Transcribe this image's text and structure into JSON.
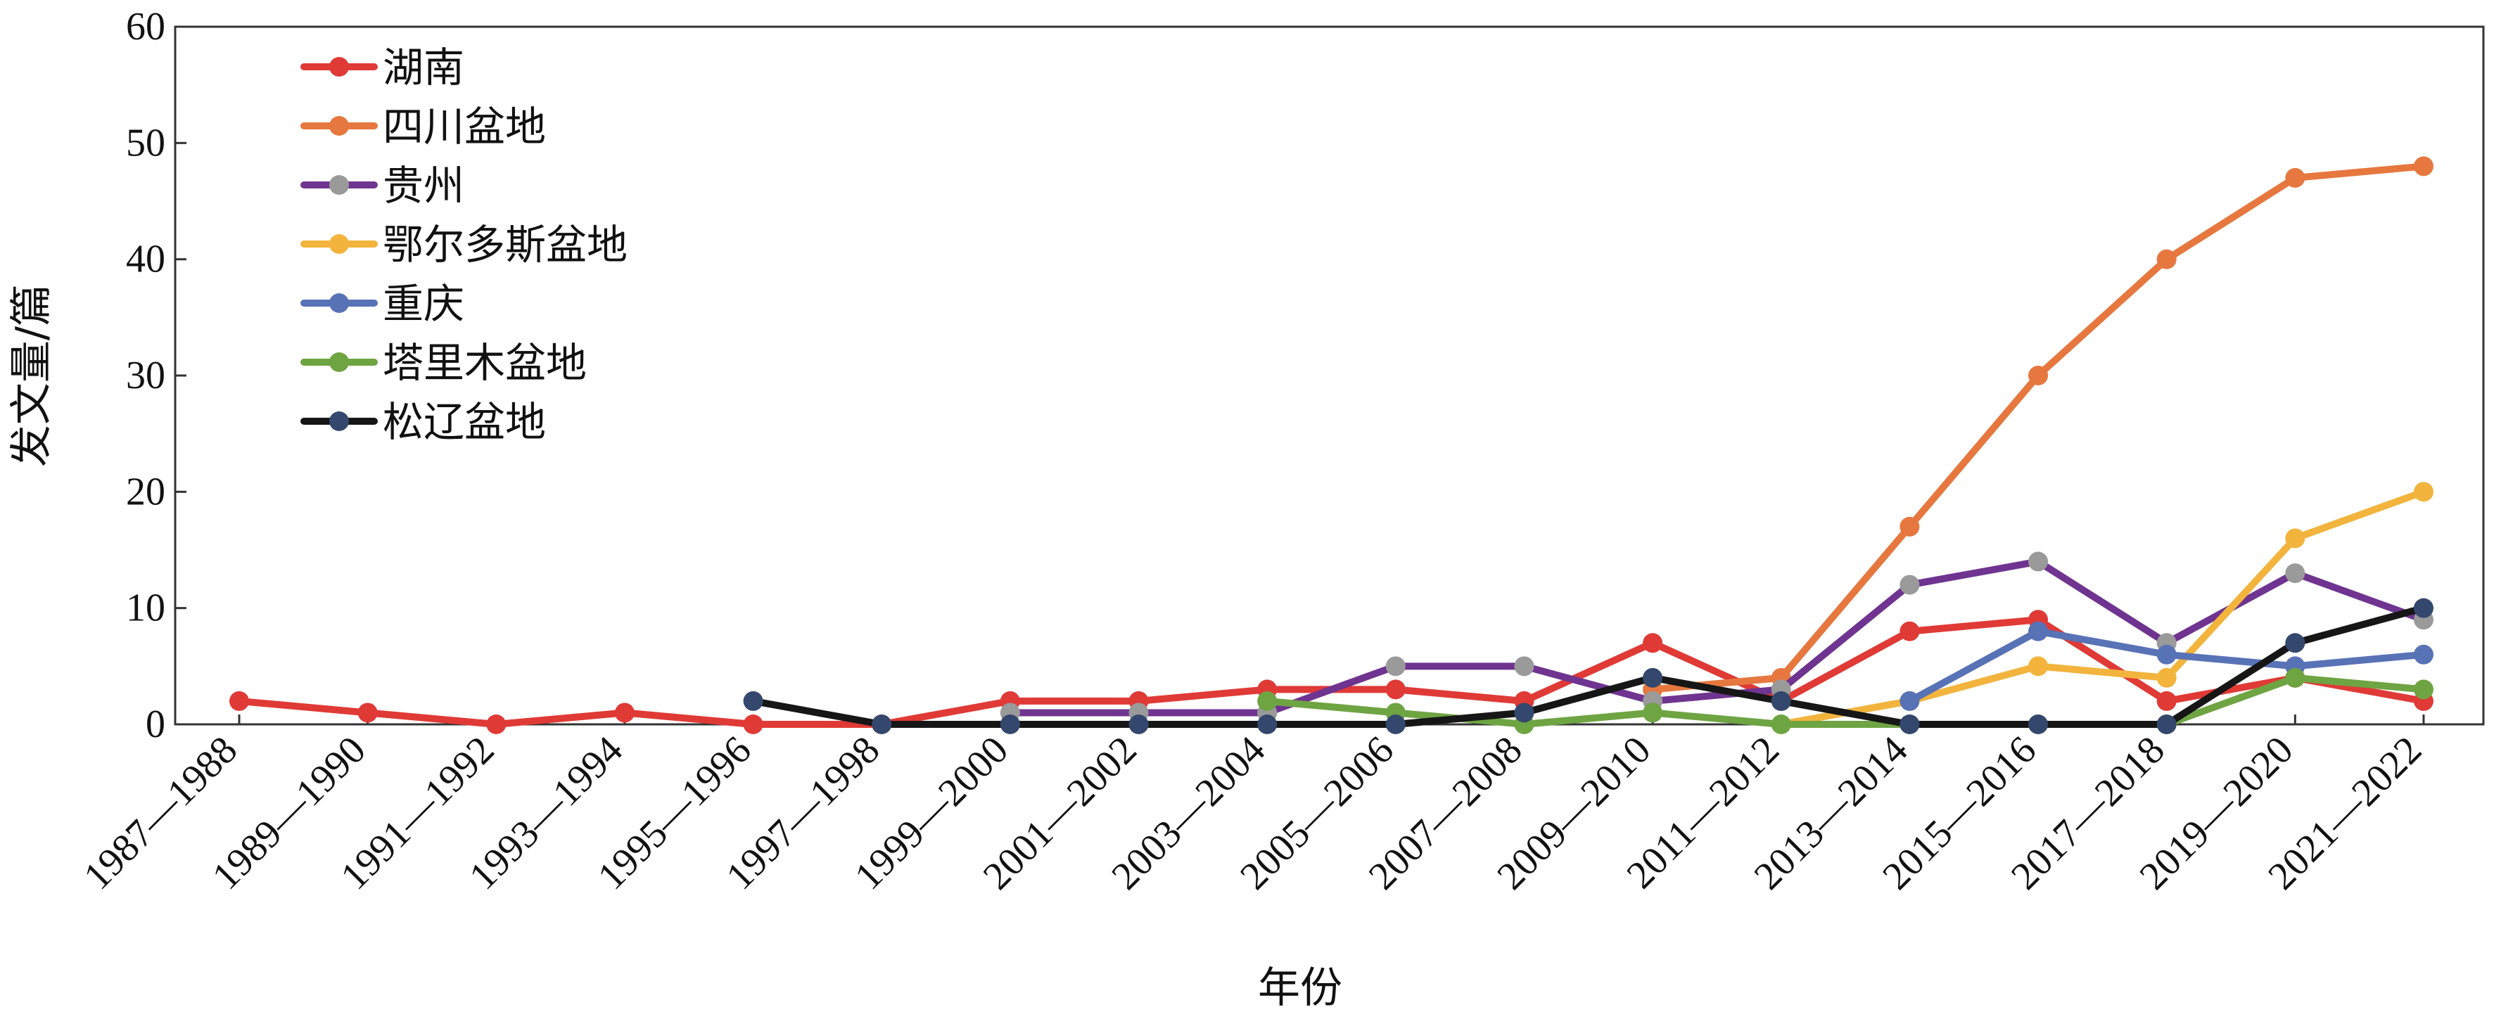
{
  "chart_data": {
    "type": "line",
    "title": "",
    "xlabel": "年份",
    "ylabel": "发文量/篇",
    "ylim": [
      0,
      60
    ],
    "yticks": [
      0,
      10,
      20,
      30,
      40,
      50,
      60
    ],
    "grid": false,
    "legend_position": "top-left",
    "categories": [
      "1987—1988",
      "1989—1990",
      "1991—1992",
      "1993—1994",
      "1995—1996",
      "1997—1998",
      "1999—2000",
      "2001—2002",
      "2003—2004",
      "2005—2006",
      "2007—2008",
      "2009—2010",
      "2011—2012",
      "2013—2014",
      "2015—2016",
      "2017—2018",
      "2019—2020",
      "2021—2022"
    ],
    "series": [
      {
        "name": "湖南",
        "line_color": "#e03a36",
        "marker_color": "#e03a36",
        "values": [
          2,
          1,
          0,
          1,
          0,
          0,
          2,
          2,
          3,
          3,
          2,
          7,
          2,
          8,
          9,
          2,
          4,
          2
        ]
      },
      {
        "name": "四川盆地",
        "line_color": "#e6783f",
        "marker_color": "#e6783f",
        "values": [
          null,
          null,
          null,
          null,
          null,
          null,
          null,
          null,
          null,
          null,
          null,
          3,
          4,
          17,
          30,
          40,
          47,
          48
        ]
      },
      {
        "name": "贵州",
        "line_color": "#6f3490",
        "marker_color": "#9a9a9a",
        "values": [
          null,
          null,
          null,
          null,
          null,
          null,
          1,
          1,
          1,
          5,
          5,
          2,
          3,
          12,
          14,
          7,
          13,
          9
        ]
      },
      {
        "name": "鄂尔多斯盆地",
        "line_color": "#f2b43c",
        "marker_color": "#f2b43c",
        "values": [
          null,
          null,
          null,
          null,
          null,
          null,
          null,
          null,
          null,
          null,
          null,
          null,
          0,
          2,
          5,
          4,
          16,
          20
        ]
      },
      {
        "name": "重庆",
        "line_color": "#5872b6",
        "marker_color": "#5872b6",
        "values": [
          null,
          null,
          null,
          null,
          null,
          null,
          null,
          null,
          null,
          null,
          null,
          null,
          null,
          2,
          8,
          6,
          5,
          6
        ]
      },
      {
        "name": "塔里木盆地",
        "line_color": "#6ea442",
        "marker_color": "#6ea442",
        "values": [
          null,
          null,
          null,
          null,
          null,
          null,
          null,
          null,
          2,
          1,
          0,
          1,
          0,
          0,
          0,
          0,
          4,
          3
        ]
      },
      {
        "name": "松辽盆地",
        "line_color": "#161616",
        "marker_color": "#34486e",
        "values": [
          null,
          null,
          null,
          null,
          2,
          0,
          0,
          0,
          0,
          0,
          1,
          4,
          2,
          0,
          0,
          0,
          7,
          10
        ]
      }
    ]
  }
}
